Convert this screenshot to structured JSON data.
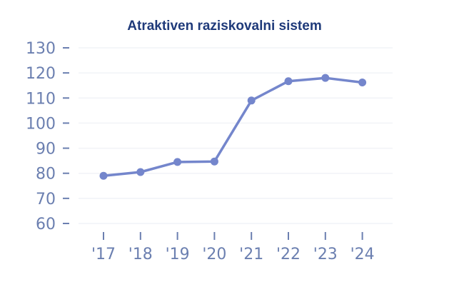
{
  "chart_data": {
    "type": "line",
    "title": "Atraktiven raziskovalni sistem",
    "xlabel": "",
    "ylabel": "",
    "categories": [
      "'17",
      "'18",
      "'19",
      "'20",
      "'21",
      "'22",
      "'23",
      "'24"
    ],
    "series": [
      {
        "values": [
          79,
          80.5,
          84.5,
          84.7,
          109,
          116.7,
          118,
          116.2
        ]
      }
    ],
    "ylim": [
      60,
      130
    ],
    "yticks": [
      60,
      70,
      80,
      90,
      100,
      110,
      120,
      130
    ],
    "grid": true,
    "legend": "none",
    "colors": {
      "line": "#7486cc",
      "axis_text": "#6b7fb0",
      "title": "#1f3a7a",
      "grid": "#f1f3f7"
    }
  }
}
